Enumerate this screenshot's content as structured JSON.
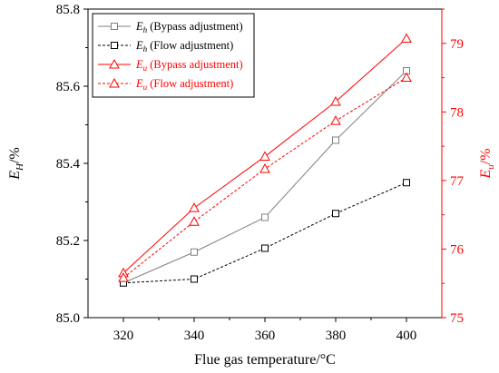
{
  "chart_data": {
    "type": "line",
    "x": [
      320,
      340,
      360,
      380,
      400
    ],
    "xlabel": "Flue gas temperature/°C",
    "xlim": [
      310,
      410
    ],
    "left_axis": {
      "label_main": "E",
      "label_sub": "H",
      "label_suffix": "/%",
      "ylim": [
        85.0,
        85.8
      ],
      "ticks": [
        85.0,
        85.2,
        85.4,
        85.6,
        85.8
      ],
      "color": "#000000"
    },
    "right_axis": {
      "label_main": "E",
      "label_sub": "u",
      "label_suffix": "/%",
      "ylim": [
        75,
        79.5
      ],
      "ticks": [
        75,
        76,
        77,
        78,
        79
      ],
      "color": "#ff0000"
    },
    "series": [
      {
        "name_main": "E",
        "name_sub": "h",
        "name_suffix": " (Bypass adjustment)",
        "axis": "left",
        "values": [
          85.09,
          85.17,
          85.26,
          85.46,
          85.64
        ],
        "color": "#808080",
        "dashed": false,
        "marker": "square"
      },
      {
        "name_main": "E",
        "name_sub": "h",
        "name_suffix": " (Flow adjustment)",
        "axis": "left",
        "values": [
          85.09,
          85.1,
          85.18,
          85.27,
          85.35
        ],
        "color": "#000000",
        "dashed": true,
        "marker": "square"
      },
      {
        "name_main": "E",
        "name_sub": "u",
        "name_suffix": " (Bypass adjustment)",
        "axis": "right",
        "values": [
          75.65,
          76.6,
          77.35,
          78.15,
          79.07
        ],
        "color": "#ff0000",
        "dashed": false,
        "marker": "triangle"
      },
      {
        "name_main": "E",
        "name_sub": "u",
        "name_suffix": " (Flow adjustment)",
        "axis": "right",
        "values": [
          75.58,
          76.4,
          77.17,
          77.87,
          78.5
        ],
        "color": "#ff0000",
        "dashed": true,
        "marker": "triangle"
      }
    ],
    "legend_position": "top-left",
    "grid": false
  }
}
